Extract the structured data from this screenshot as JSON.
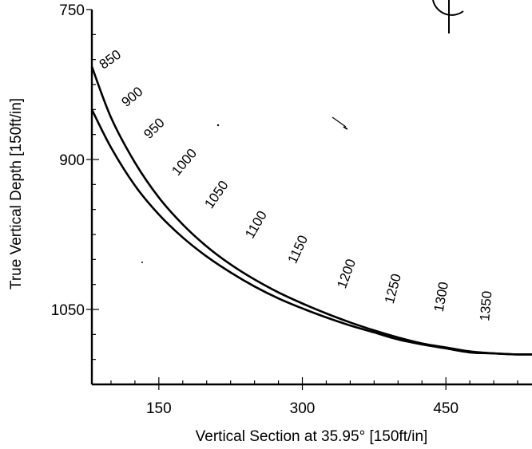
{
  "chart_data": {
    "type": "line",
    "title": "",
    "xlabel": "Vertical Section at 35.95° [150ft/in]",
    "ylabel": "True Vertical Depth [150ft/in]",
    "xlim": [
      80,
      540
    ],
    "ylim": [
      1125,
      750
    ],
    "y_inverted": true,
    "grid": false,
    "x_ticks": [
      150,
      300,
      450
    ],
    "y_ticks": [
      750,
      900,
      1050
    ],
    "series": [
      {
        "x": [
          80,
          100,
          125,
          150,
          175,
          200,
          225,
          250,
          275,
          300,
          325,
          350,
          375,
          400,
          425,
          450,
          475,
          500,
          525,
          540
        ],
        "y": [
          807,
          858,
          903,
          938,
          965,
          987,
          1005,
          1020,
          1033,
          1044,
          1054,
          1063,
          1071,
          1078,
          1084,
          1088,
          1092,
          1094,
          1095,
          1095
        ]
      },
      {
        "x": [
          80,
          100,
          125,
          150,
          175,
          200,
          225,
          250,
          275,
          300,
          325,
          350,
          375,
          400,
          425,
          450,
          475,
          500,
          525,
          540
        ],
        "y": [
          850,
          888,
          926,
          955,
          978,
          997,
          1013,
          1027,
          1039,
          1049,
          1058,
          1066,
          1073,
          1080,
          1085,
          1089,
          1093,
          1094,
          1095,
          1095
        ]
      }
    ],
    "md_annotations": [
      {
        "label": "850",
        "x": 92,
        "y": 810
      },
      {
        "label": "900",
        "x": 116,
        "y": 848
      },
      {
        "label": "950",
        "x": 140,
        "y": 880
      },
      {
        "label": "1000",
        "x": 170,
        "y": 917
      },
      {
        "label": "1050",
        "x": 205,
        "y": 950
      },
      {
        "label": "1100",
        "x": 248,
        "y": 980
      },
      {
        "label": "1150",
        "x": 293,
        "y": 1005
      },
      {
        "label": "1200",
        "x": 345,
        "y": 1030
      },
      {
        "label": "1250",
        "x": 395,
        "y": 1045
      },
      {
        "label": "1300",
        "x": 447,
        "y": 1053
      },
      {
        "label": "1350",
        "x": 495,
        "y": 1062
      }
    ]
  }
}
